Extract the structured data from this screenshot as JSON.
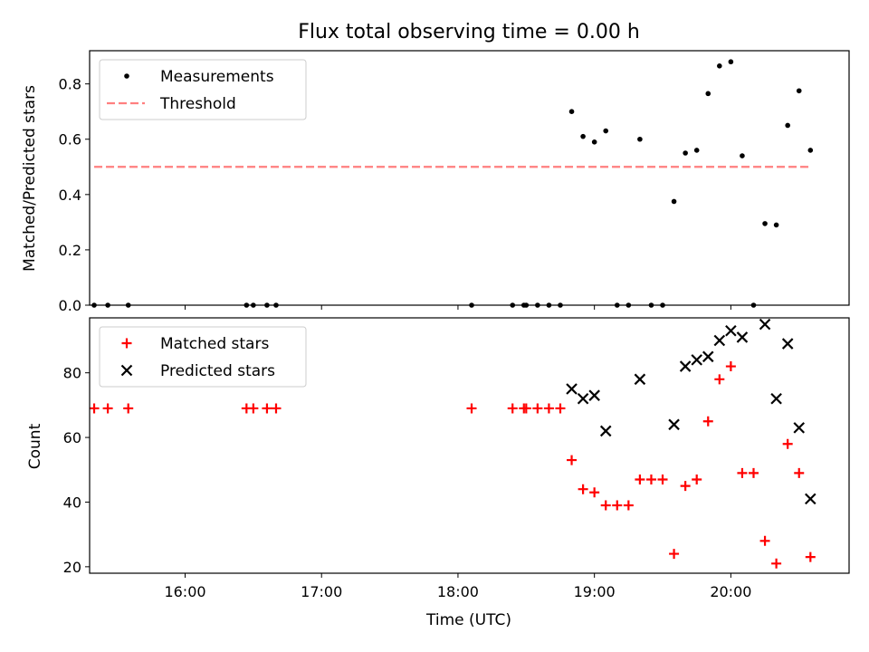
{
  "chart_data": [
    {
      "type": "scatter",
      "title": "Flux total observing time = 0.00 h",
      "ylabel": "Matched/Predicted stars",
      "xlabel": "",
      "xlim": [
        "15:18",
        "20:52"
      ],
      "ylim": [
        0,
        0.92
      ],
      "yticks": [
        0.0,
        0.2,
        0.4,
        0.6,
        0.8
      ],
      "ytick_labels": [
        "0.0",
        "0.2",
        "0.4",
        "0.6",
        "0.8"
      ],
      "legend": {
        "position": "top-left",
        "entries": [
          "Measurements",
          "Threshold"
        ]
      },
      "series": [
        {
          "name": "Measurements",
          "color": "#000000",
          "marker": "dot",
          "points": [
            [
              "15:20",
              0.0
            ],
            [
              "15:26",
              0.0
            ],
            [
              "15:35",
              0.0
            ],
            [
              "16:27",
              0.0
            ],
            [
              "16:30",
              0.0
            ],
            [
              "16:36",
              0.0
            ],
            [
              "16:40",
              0.0
            ],
            [
              "18:06",
              0.0
            ],
            [
              "18:24",
              0.0
            ],
            [
              "18:29",
              0.0
            ],
            [
              "18:30",
              0.0
            ],
            [
              "18:35",
              0.0
            ],
            [
              "18:40",
              0.0
            ],
            [
              "18:45",
              0.0
            ],
            [
              "18:50",
              0.7
            ],
            [
              "18:55",
              0.61
            ],
            [
              "19:00",
              0.59
            ],
            [
              "19:05",
              0.63
            ],
            [
              "19:10",
              0.0
            ],
            [
              "19:15",
              0.0
            ],
            [
              "19:20",
              0.6
            ],
            [
              "19:25",
              0.0
            ],
            [
              "19:30",
              0.0
            ],
            [
              "19:35",
              0.375
            ],
            [
              "19:40",
              0.55
            ],
            [
              "19:45",
              0.56
            ],
            [
              "19:50",
              0.765
            ],
            [
              "19:55",
              0.865
            ],
            [
              "20:00",
              0.88
            ],
            [
              "20:05",
              0.54
            ],
            [
              "20:10",
              0.0
            ],
            [
              "20:15",
              0.295
            ],
            [
              "20:20",
              0.29
            ],
            [
              "20:25",
              0.65
            ],
            [
              "20:30",
              0.775
            ],
            [
              "20:35",
              0.56
            ]
          ]
        },
        {
          "name": "Threshold",
          "color": "#ff7f7f",
          "style": "dashed",
          "points": [
            [
              "15:20",
              0.5
            ],
            [
              "20:35",
              0.5
            ]
          ]
        }
      ]
    },
    {
      "type": "scatter",
      "title": "",
      "ylabel": "Count",
      "xlabel": "Time (UTC)",
      "xlim": [
        "15:18",
        "20:52"
      ],
      "ylim": [
        18,
        97
      ],
      "yticks": [
        20,
        40,
        60,
        80
      ],
      "ytick_labels": [
        "20",
        "40",
        "60",
        "80"
      ],
      "xticks": [
        "16:00",
        "17:00",
        "18:00",
        "19:00",
        "20:00"
      ],
      "xtick_labels": [
        "16:00",
        "17:00",
        "18:00",
        "19:00",
        "20:00"
      ],
      "legend": {
        "position": "top-left",
        "entries": [
          "Matched stars",
          "Predicted stars"
        ]
      },
      "series": [
        {
          "name": "Matched stars",
          "color": "#ff0000",
          "marker": "plus",
          "points": [
            [
              "15:20",
              69
            ],
            [
              "15:26",
              69
            ],
            [
              "15:35",
              69
            ],
            [
              "16:27",
              69
            ],
            [
              "16:30",
              69
            ],
            [
              "16:36",
              69
            ],
            [
              "16:40",
              69
            ],
            [
              "18:06",
              69
            ],
            [
              "18:24",
              69
            ],
            [
              "18:29",
              69
            ],
            [
              "18:30",
              69
            ],
            [
              "18:35",
              69
            ],
            [
              "18:40",
              69
            ],
            [
              "18:45",
              69
            ],
            [
              "18:50",
              53
            ],
            [
              "18:55",
              44
            ],
            [
              "19:00",
              43
            ],
            [
              "19:05",
              39
            ],
            [
              "19:10",
              39
            ],
            [
              "19:15",
              39
            ],
            [
              "19:20",
              47
            ],
            [
              "19:25",
              47
            ],
            [
              "19:30",
              47
            ],
            [
              "19:35",
              24
            ],
            [
              "19:40",
              45
            ],
            [
              "19:45",
              47
            ],
            [
              "19:50",
              65
            ],
            [
              "19:55",
              78
            ],
            [
              "20:00",
              82
            ],
            [
              "20:05",
              49
            ],
            [
              "20:10",
              49
            ],
            [
              "20:15",
              28
            ],
            [
              "20:20",
              21
            ],
            [
              "20:25",
              58
            ],
            [
              "20:30",
              49
            ],
            [
              "20:35",
              23
            ]
          ]
        },
        {
          "name": "Predicted stars",
          "color": "#000000",
          "marker": "x",
          "points": [
            [
              "18:50",
              75
            ],
            [
              "18:55",
              72
            ],
            [
              "19:00",
              73
            ],
            [
              "19:05",
              62
            ],
            [
              "19:20",
              78
            ],
            [
              "19:35",
              64
            ],
            [
              "19:40",
              82
            ],
            [
              "19:45",
              84
            ],
            [
              "19:50",
              85
            ],
            [
              "19:55",
              90
            ],
            [
              "20:00",
              93
            ],
            [
              "20:05",
              91
            ],
            [
              "20:15",
              95
            ],
            [
              "20:20",
              72
            ],
            [
              "20:25",
              89
            ],
            [
              "20:30",
              63
            ],
            [
              "20:35",
              41
            ]
          ]
        }
      ]
    }
  ]
}
